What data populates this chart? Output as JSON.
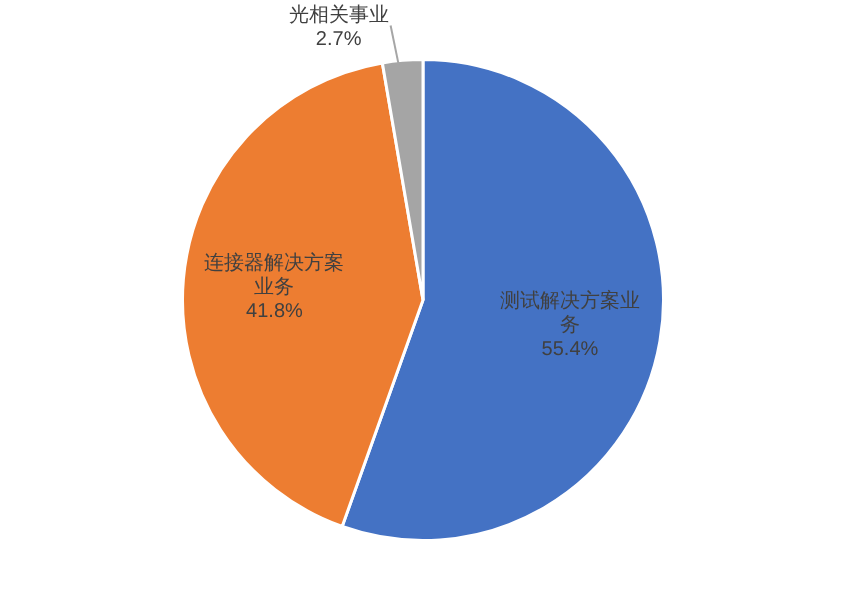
{
  "chart_data": {
    "type": "pie",
    "categories": [
      "测试解决方案业务",
      "连接器解决方案业务",
      "光相关事业"
    ],
    "values": [
      55.4,
      41.8,
      2.7
    ],
    "colors": [
      "#4472c4",
      "#ed7d31",
      "#a5a5a5"
    ],
    "value_labels": [
      "55.4%",
      "41.8%",
      "2.7%"
    ],
    "legend": false
  }
}
